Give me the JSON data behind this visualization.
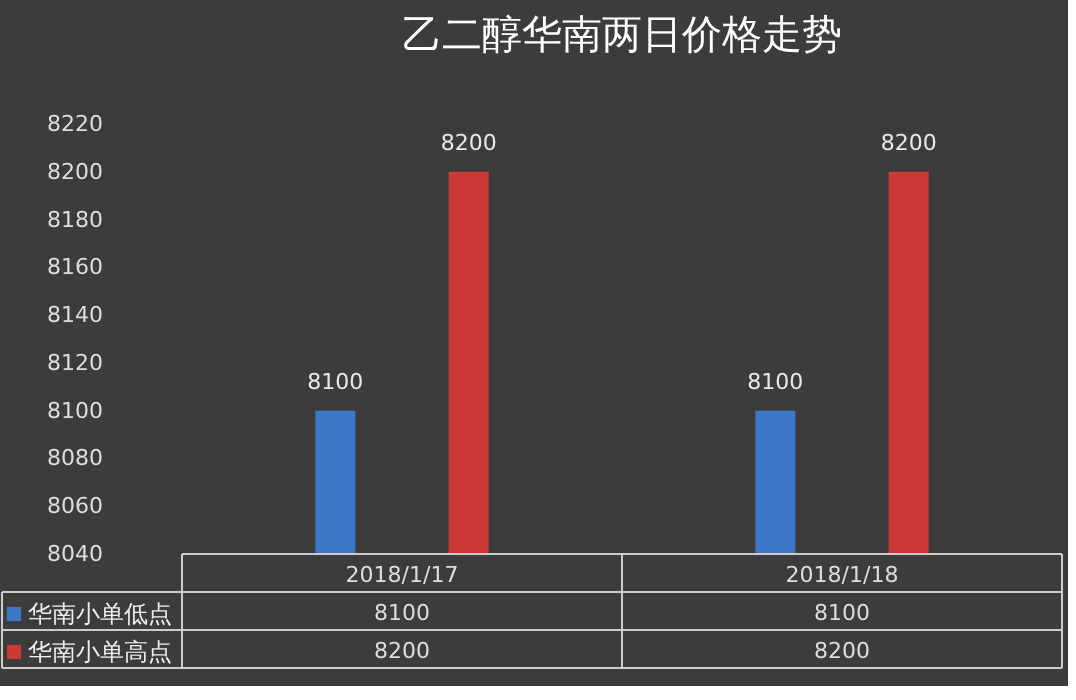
{
  "chart_data": {
    "type": "bar",
    "title": "乙二醇华南两日价格走势",
    "categories": [
      "2018/1/17",
      "2018/1/18"
    ],
    "series": [
      {
        "name": "华南小单低点",
        "color": "#3d78c8",
        "values": [
          8100,
          8100
        ]
      },
      {
        "name": "华南小单高点",
        "color": "#cc3a36",
        "values": [
          8200,
          8200
        ]
      }
    ],
    "annotations": [
      "8100",
      "8100",
      "8200",
      "8200"
    ],
    "ylim": [
      8040,
      8220
    ],
    "yticks": [
      8040,
      8060,
      8080,
      8100,
      8120,
      8140,
      8160,
      8180,
      8200,
      8220
    ],
    "grid": false,
    "legend": "bottom",
    "data_labels": true
  }
}
